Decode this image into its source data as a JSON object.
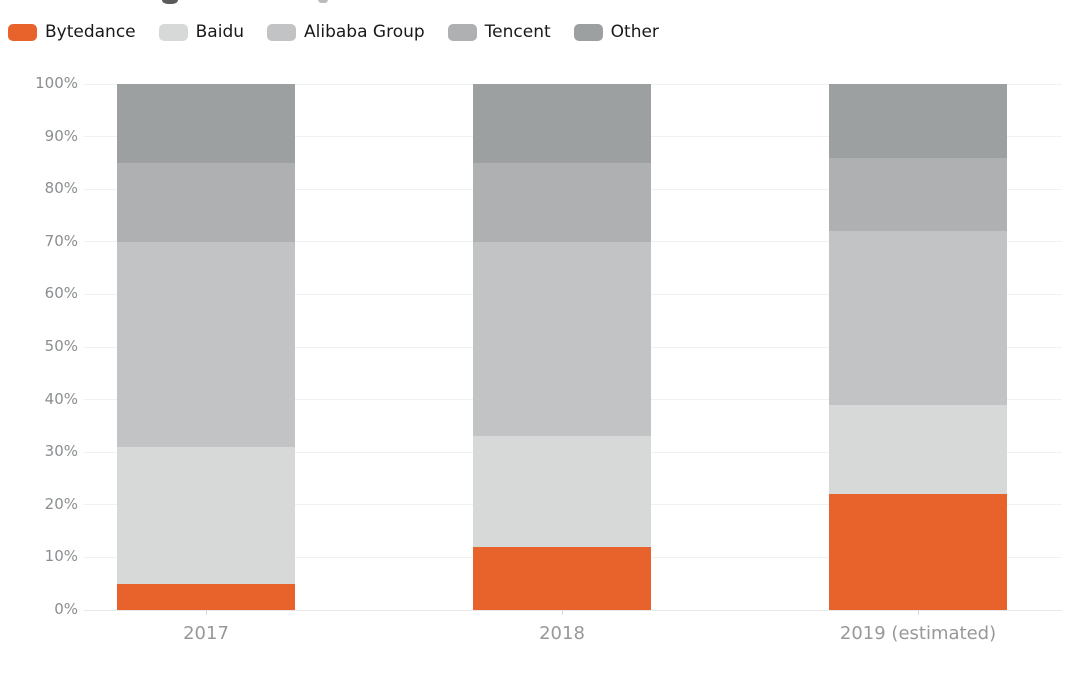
{
  "page": {
    "background": "#ffffff",
    "cropped_title_visible": true
  },
  "legend": {
    "position": "top-left"
  },
  "chart_data": {
    "type": "bar",
    "stacked": true,
    "normalized_percent": true,
    "title": "",
    "xlabel": "",
    "ylabel": "",
    "categories": [
      "2017",
      "2018",
      "2019 (estimated)"
    ],
    "series": [
      {
        "name": "Bytedance",
        "color": "#e8622c",
        "values": [
          5,
          12,
          22
        ]
      },
      {
        "name": "Baidu",
        "color": "#d7d9d9",
        "values": [
          26,
          21,
          17
        ]
      },
      {
        "name": "Alibaba Group",
        "color": "#c1c3c4",
        "values": [
          39,
          37,
          33
        ]
      },
      {
        "name": "Tencent",
        "color": "#aeb0b1",
        "values": [
          15,
          15,
          14
        ]
      },
      {
        "name": "Other",
        "color": "#9da0a1",
        "values": [
          15,
          15,
          14
        ]
      }
    ],
    "ylim": [
      0,
      100
    ],
    "y_ticks": [
      "0%",
      "10%",
      "20%",
      "30%",
      "40%",
      "50%",
      "60%",
      "70%",
      "80%",
      "90%",
      "100%"
    ],
    "grid": true,
    "legend_position": "top-left",
    "colors": {
      "grid": "#f0f1f1",
      "baseline": "#e7e8e8",
      "y_tick_text": "#8b8e90",
      "x_tick_text": "#96989a",
      "legend_text": "#18191a",
      "accent": "#e8622c"
    }
  }
}
